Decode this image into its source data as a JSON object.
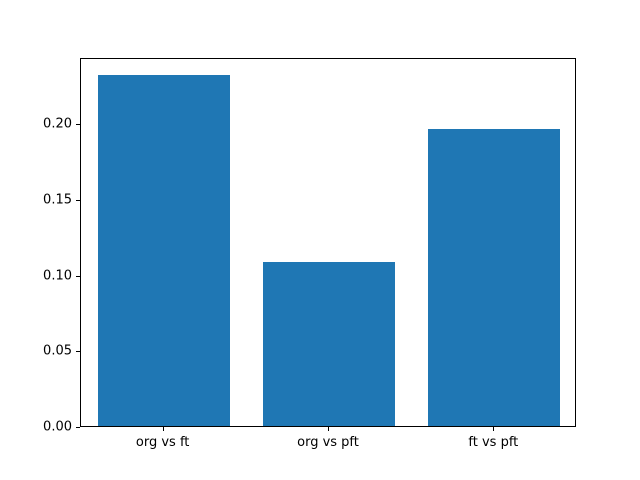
{
  "chart_data": {
    "type": "bar",
    "title": "",
    "xlabel": "",
    "ylabel": "",
    "categories": [
      "org vs ft",
      "org vs pft",
      "ft vs pft"
    ],
    "values": [
      0.232,
      0.108,
      0.196
    ],
    "ylim": [
      0,
      0.2436
    ],
    "yticks": [
      0.0,
      0.05,
      0.1,
      0.15,
      0.2
    ],
    "ytick_format_decimals": 2,
    "bar_color": "#1f77b4",
    "axis_color": "#000000",
    "background_color": "#ffffff",
    "grid": false,
    "legend": null,
    "bar_width_fraction": 0.8
  }
}
